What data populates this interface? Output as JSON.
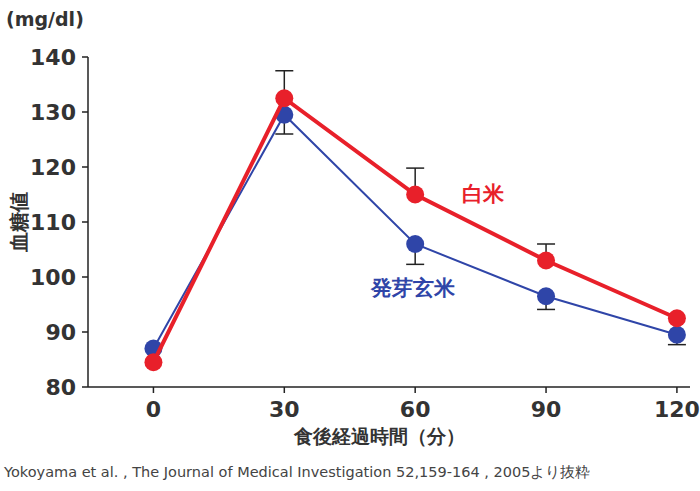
{
  "chart_data": {
    "type": "line",
    "y_unit": "(mg/dl)",
    "y_label": "血糖値",
    "x_label": "食後経過時間（分）",
    "source": "Yokoyama et al. , The Journal of  Medical Investigation 52,159-164 , 2005より抜粋",
    "x": [
      0,
      30,
      60,
      90,
      120
    ],
    "series": [
      {
        "name": "白米",
        "color": "#e8202a",
        "marker": "circle",
        "line_style": "solid",
        "values": [
          84.5,
          132.5,
          115,
          103,
          92.5
        ],
        "errors": [
          null,
          5,
          4.8,
          3,
          null
        ]
      },
      {
        "name": "発芽玄米",
        "color": "#2f45a8",
        "marker": "circle",
        "line_style": "solid",
        "values": [
          87,
          129.5,
          106,
          96.5,
          89.5
        ],
        "errors": [
          null,
          3.5,
          3.7,
          2.4,
          1.8
        ]
      }
    ],
    "xlim": [
      -15,
      123
    ],
    "xticks": [
      0,
      30,
      60,
      90,
      120
    ],
    "ylim": [
      80,
      140
    ],
    "yticks": [
      80,
      90,
      100,
      110,
      120,
      130,
      140
    ],
    "grid": false
  }
}
